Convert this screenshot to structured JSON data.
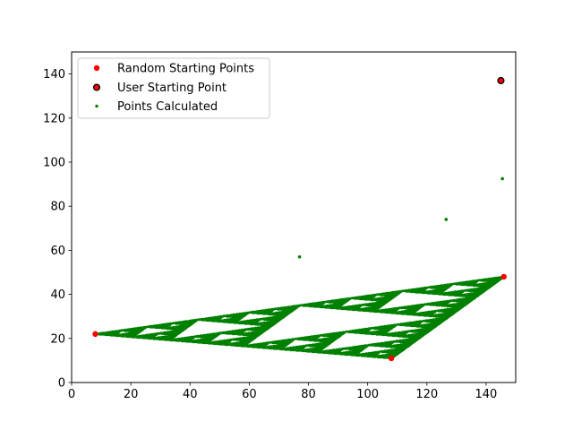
{
  "chart_data": {
    "type": "scatter",
    "title": "",
    "xlabel": "",
    "ylabel": "",
    "xlim": [
      0,
      150
    ],
    "ylim": [
      0,
      150
    ],
    "xticks": [
      0,
      20,
      40,
      60,
      80,
      100,
      120,
      140
    ],
    "yticks": [
      0,
      20,
      40,
      60,
      80,
      100,
      120,
      140
    ],
    "grid": false,
    "legend_position": "top-left",
    "vertices": [
      [
        8,
        22
      ],
      [
        108,
        11
      ],
      [
        146,
        48
      ]
    ],
    "series": [
      {
        "name": "Random Starting Points",
        "color": "#ff0000",
        "edgecolor": "#ff0000",
        "marker": "circle",
        "points": [
          [
            8,
            22
          ],
          [
            108,
            11
          ],
          [
            146,
            48
          ]
        ]
      },
      {
        "name": "User Starting Point",
        "color": "#ff0000",
        "edgecolor": "#000000",
        "marker": "circle",
        "points": [
          [
            145,
            137
          ]
        ]
      },
      {
        "name": "Points Calculated",
        "color": "#008000",
        "edgecolor": "#008000",
        "marker": "circle",
        "points": [
          [
            145.5,
            92.5
          ],
          [
            126.5,
            74
          ],
          [
            77,
            57
          ]
        ],
        "fractal": "sierpinski-chaos-game"
      }
    ]
  }
}
